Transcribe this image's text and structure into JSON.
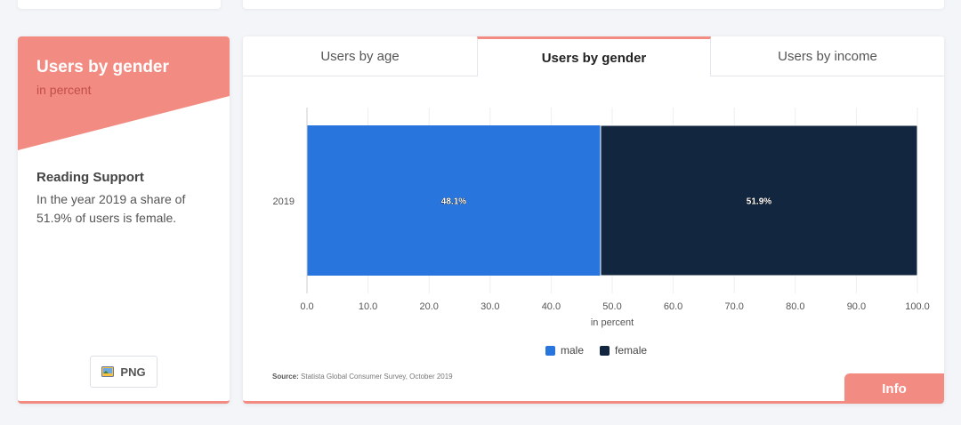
{
  "left_card": {
    "title": "Users by gender",
    "subtitle": "in percent",
    "reading_support_title": "Reading Support",
    "reading_support_text": "In the year 2019 a share of 51.9% of users is female.",
    "png_label": "PNG"
  },
  "tabs": [
    {
      "label": "Users by age",
      "active": false
    },
    {
      "label": "Users by gender",
      "active": true
    },
    {
      "label": "Users by income",
      "active": false
    }
  ],
  "chart_data": {
    "type": "bar",
    "orientation": "horizontal",
    "stacked": true,
    "categories": [
      "2019"
    ],
    "series": [
      {
        "name": "male",
        "values": [
          48.1
        ],
        "label": "48.1%",
        "color": "#2876dd"
      },
      {
        "name": "female",
        "values": [
          51.9
        ],
        "label": "51.9%",
        "color": "#12263f"
      }
    ],
    "xlabel": "in percent",
    "xlim": [
      0,
      100
    ],
    "xticks": [
      "0.0",
      "10.0",
      "20.0",
      "30.0",
      "40.0",
      "50.0",
      "60.0",
      "70.0",
      "80.0",
      "90.0",
      "100.0"
    ],
    "grid": true,
    "legend_position": "bottom"
  },
  "source": {
    "label": "Source:",
    "text": "Statista Global Consumer Survey, October 2019"
  },
  "info_label": "Info",
  "colors": {
    "accent": "#f28b82",
    "accent_dark": "#c24f47"
  }
}
